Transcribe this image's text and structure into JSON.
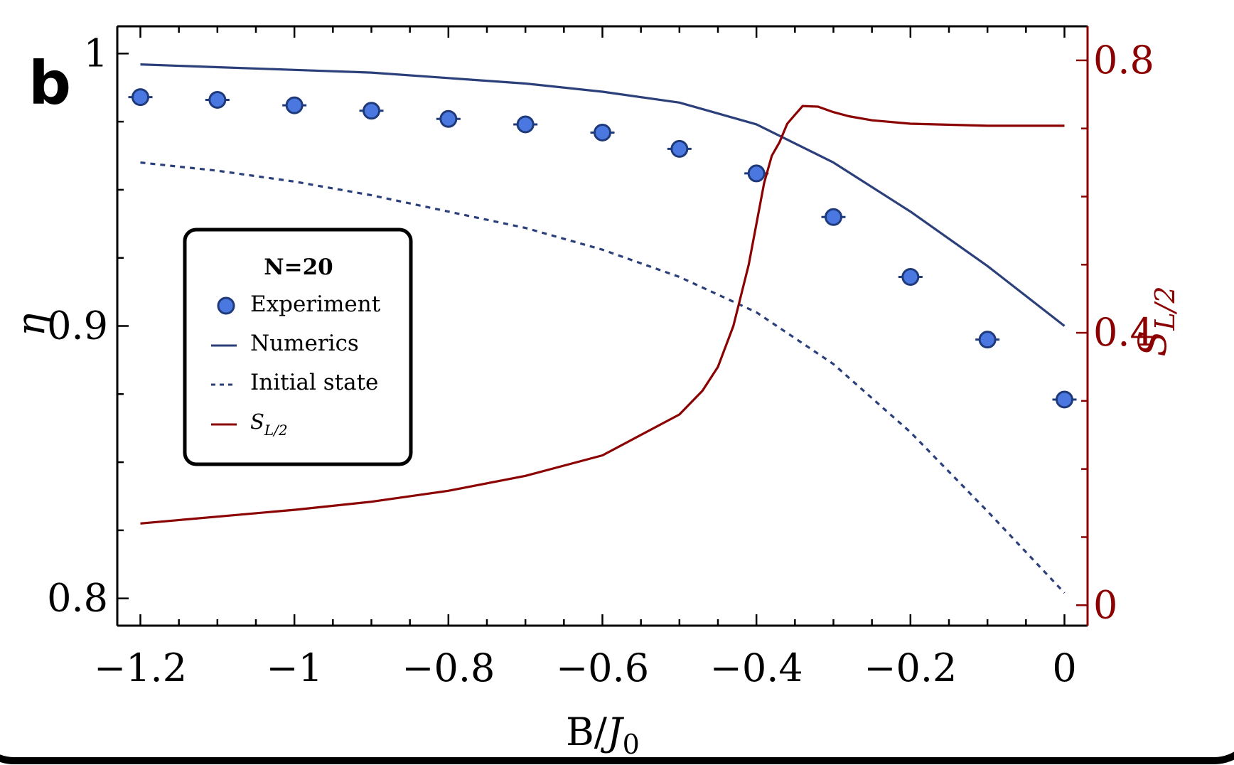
{
  "panel_label": "b",
  "colors": {
    "experiment_fill": "#4a78e0",
    "experiment_stroke": "#1f3a7a",
    "numerics": "#2b3f7a",
    "initial_state": "#2b3f7a",
    "entropy": "#8b0000",
    "axis": "#000000"
  },
  "chart_data": {
    "type": "line",
    "x_axis": {
      "label_main": "B/",
      "label_sym": "J",
      "label_sub": "0",
      "range": [
        -1.23,
        0.03
      ],
      "ticks": [
        -1.2,
        -1.0,
        -0.8,
        -0.6,
        -0.4,
        -0.2,
        0.0
      ],
      "tick_labels": [
        "−1.2",
        "−1",
        "−0.8",
        "−0.6",
        "−0.4",
        "−0.2",
        "0"
      ]
    },
    "y_axis_left": {
      "label": "η",
      "range": [
        0.79,
        1.01
      ],
      "ticks": [
        0.8,
        0.9,
        1.0
      ],
      "tick_labels": [
        "0.8",
        "0.9",
        "1"
      ]
    },
    "y_axis_right": {
      "label_main": "S",
      "label_sub": "L/2",
      "range": [
        -0.03,
        0.85
      ],
      "ticks": [
        0.0,
        0.4,
        0.8
      ],
      "tick_labels": [
        "0",
        "0.4",
        "0.8"
      ]
    },
    "legend": {
      "title": "N=20",
      "position": "center-left",
      "entries": [
        "Experiment",
        "Numerics",
        "Initial state",
        "S_L/2"
      ]
    },
    "series": [
      {
        "name": "Experiment",
        "axis": "left",
        "style": "markers",
        "x": [
          -1.2,
          -1.1,
          -1.0,
          -0.9,
          -0.8,
          -0.7,
          -0.6,
          -0.5,
          -0.4,
          -0.3,
          -0.2,
          -0.1,
          0.0
        ],
        "y": [
          0.984,
          0.983,
          0.981,
          0.979,
          0.976,
          0.974,
          0.971,
          0.965,
          0.956,
          0.94,
          0.918,
          0.895,
          0.873
        ]
      },
      {
        "name": "Numerics",
        "axis": "left",
        "style": "solid",
        "x": [
          -1.2,
          -1.1,
          -1.0,
          -0.9,
          -0.8,
          -0.7,
          -0.6,
          -0.5,
          -0.4,
          -0.3,
          -0.2,
          -0.1,
          0.0
        ],
        "y": [
          0.996,
          0.995,
          0.994,
          0.993,
          0.991,
          0.989,
          0.986,
          0.982,
          0.974,
          0.96,
          0.942,
          0.922,
          0.9
        ]
      },
      {
        "name": "Initial state",
        "axis": "left",
        "style": "dashed",
        "x": [
          -1.2,
          -1.1,
          -1.0,
          -0.9,
          -0.8,
          -0.7,
          -0.6,
          -0.5,
          -0.4,
          -0.3,
          -0.2,
          -0.1,
          0.0
        ],
        "y": [
          0.96,
          0.957,
          0.953,
          0.948,
          0.942,
          0.936,
          0.928,
          0.918,
          0.905,
          0.886,
          0.861,
          0.832,
          0.802
        ]
      },
      {
        "name": "S_L/2",
        "axis": "right",
        "style": "solid",
        "x": [
          -1.2,
          -1.1,
          -1.0,
          -0.9,
          -0.8,
          -0.7,
          -0.6,
          -0.5,
          -0.47,
          -0.45,
          -0.43,
          -0.41,
          -0.39,
          -0.38,
          -0.37,
          -0.36,
          -0.35,
          -0.34,
          -0.32,
          -0.3,
          -0.28,
          -0.25,
          -0.2,
          -0.1,
          0.0
        ],
        "y": [
          0.12,
          0.13,
          0.14,
          0.152,
          0.168,
          0.19,
          0.22,
          0.28,
          0.315,
          0.35,
          0.41,
          0.5,
          0.62,
          0.66,
          0.68,
          0.707,
          0.72,
          0.733,
          0.732,
          0.724,
          0.718,
          0.712,
          0.707,
          0.704,
          0.704
        ]
      }
    ]
  }
}
